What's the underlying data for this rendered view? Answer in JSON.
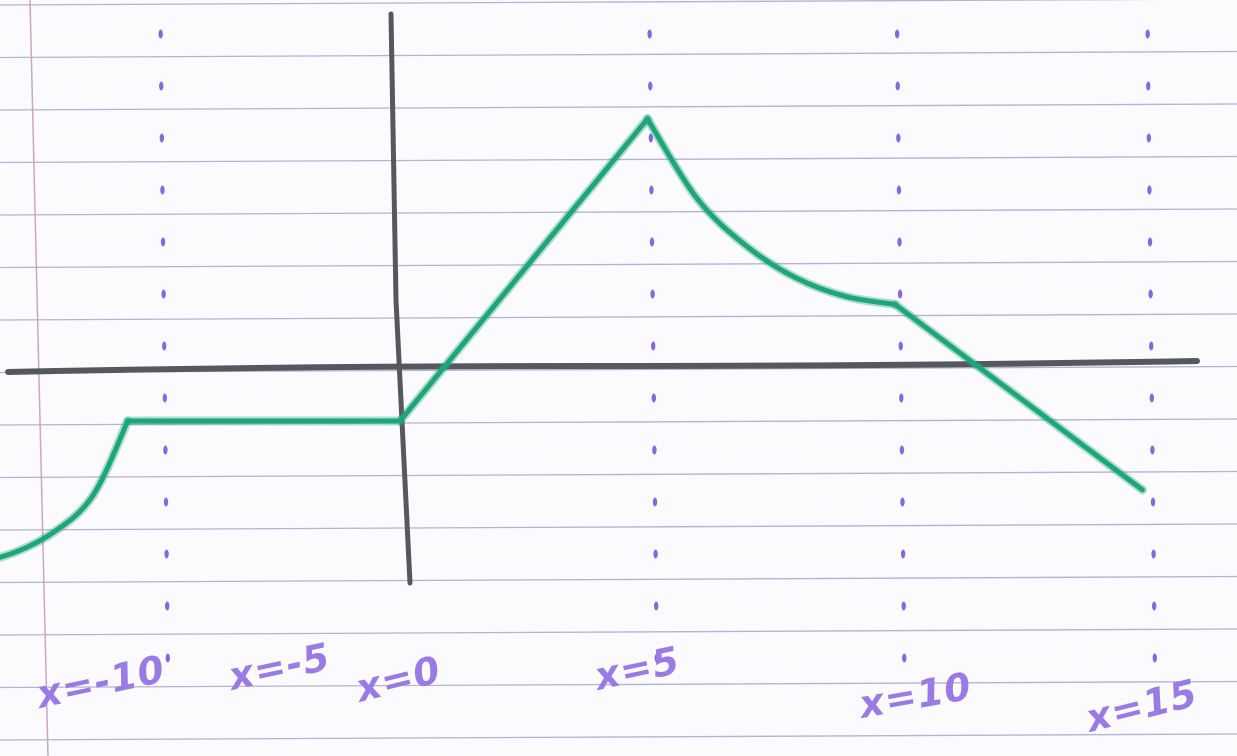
{
  "chart_data": {
    "type": "line",
    "title": "",
    "xlabel": "",
    "ylabel": "",
    "x_tick_labels": [
      "x=-10",
      "x=-5",
      "x=0",
      "x=5",
      "x=10",
      "x=15"
    ],
    "x_ticks": [
      -10,
      -5,
      0,
      5,
      10,
      15
    ],
    "xlim": [
      -11,
      16
    ],
    "ylim": [
      -4,
      5
    ],
    "grid": true,
    "series": [
      {
        "segments": [
          {
            "shape": "curve",
            "points": [
              [
                -9,
                -3.7
              ],
              [
                -8,
                -3.55
              ],
              [
                -7,
                -3.1
              ],
              [
                -6.2,
                -2.4
              ],
              [
                -5.5,
                -1
              ]
            ]
          },
          {
            "shape": "line",
            "points": [
              [
                -5.5,
                -1
              ],
              [
                0,
                -1
              ]
            ]
          },
          {
            "shape": "line",
            "points": [
              [
                0,
                -1
              ],
              [
                5,
                4.7
              ]
            ]
          },
          {
            "shape": "curve",
            "points": [
              [
                5,
                4.7
              ],
              [
                6,
                3.2
              ],
              [
                7,
                2.3
              ],
              [
                8,
                1.7
              ],
              [
                9,
                1.35
              ],
              [
                10,
                1.2
              ]
            ]
          },
          {
            "shape": "line",
            "points": [
              [
                10,
                1.2
              ],
              [
                15,
                -2.3
              ]
            ]
          }
        ]
      }
    ],
    "colors": {
      "curve": "#1fa57a",
      "axes": "#55595e",
      "ruling": "#b3b3d4",
      "margin": "#c9a6c9",
      "dots": "#8a66dd",
      "labels": "#9a7be6"
    }
  }
}
